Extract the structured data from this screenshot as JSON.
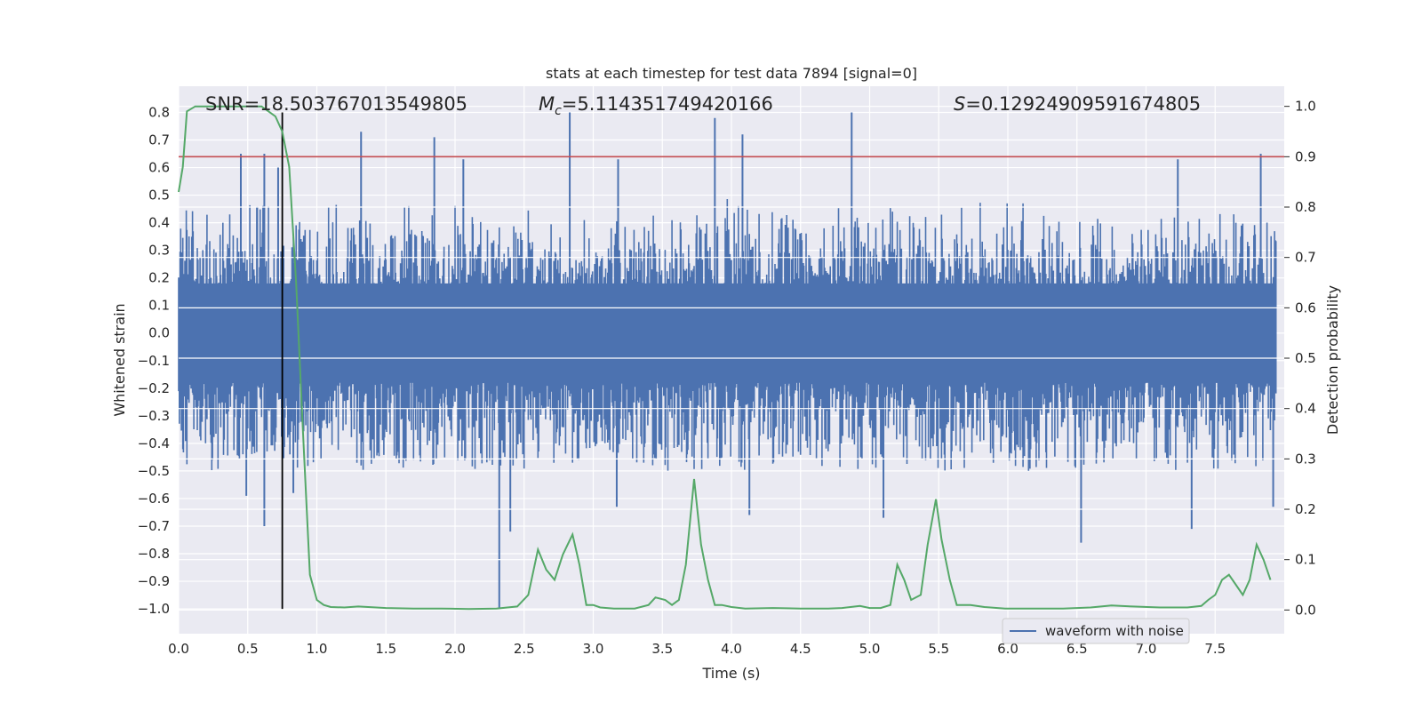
{
  "chart_data": {
    "type": "line",
    "title": "stats at each timestep for test data 7894 [signal=0]",
    "xlabel": "Time (s)",
    "ylabel": "Whitened strain",
    "y2label": "Detection probability",
    "xlim": [
      0.0,
      8.0
    ],
    "ylim": [
      -1.09,
      0.895
    ],
    "y2lim": [
      -0.047,
      1.04
    ],
    "grid": true,
    "legend_position": "lower-right",
    "x_ticks": [
      "0.0",
      "0.5",
      "1.0",
      "1.5",
      "2.0",
      "2.5",
      "3.0",
      "3.5",
      "4.0",
      "4.5",
      "5.0",
      "5.5",
      "6.0",
      "6.5",
      "7.0",
      "7.5"
    ],
    "y_ticks": [
      "0.8",
      "0.7",
      "0.6",
      "0.5",
      "0.4",
      "0.3",
      "0.2",
      "0.1",
      "0.0",
      "−0.1",
      "−0.2",
      "−0.3",
      "−0.4",
      "−0.5",
      "−0.6",
      "−0.7",
      "−0.8",
      "−0.9",
      "−1.0"
    ],
    "y2_ticks": [
      "1.0",
      "0.9",
      "0.8",
      "0.7",
      "0.6",
      "0.5",
      "0.4",
      "0.3",
      "0.2",
      "0.1",
      "0.0"
    ],
    "annotations": {
      "snr": "SNR=18.503767013549805",
      "mc_symbol": "M",
      "mc_subscript": "c",
      "mc_value": "=5.114351749420166",
      "s_symbol": "S",
      "s_value": "=0.12924909591674805"
    },
    "threshold_line": {
      "value": 0.9,
      "axis": "right",
      "color": "#c44e52"
    },
    "marker_line": {
      "x": 0.75,
      "y_range": [
        -1.0,
        0.8
      ],
      "color": "#000000"
    },
    "series": [
      {
        "name": "waveform with noise",
        "axis": "left",
        "color": "#4c72b0",
        "envelope_typical": [
          -0.4,
          0.4
        ],
        "spikes": [
          {
            "x": 0.45,
            "y": 0.65
          },
          {
            "x": 0.62,
            "y": 0.65
          },
          {
            "x": 0.72,
            "y": 0.6
          },
          {
            "x": 1.32,
            "y": 0.73
          },
          {
            "x": 1.85,
            "y": 0.71
          },
          {
            "x": 2.06,
            "y": 0.63
          },
          {
            "x": 2.83,
            "y": 0.8
          },
          {
            "x": 3.18,
            "y": 0.63
          },
          {
            "x": 3.88,
            "y": 0.78
          },
          {
            "x": 4.08,
            "y": 0.72
          },
          {
            "x": 4.87,
            "y": 0.8
          },
          {
            "x": 7.23,
            "y": 0.63
          },
          {
            "x": 7.83,
            "y": 0.65
          },
          {
            "x": 0.62,
            "y": -0.7
          },
          {
            "x": 0.49,
            "y": -0.59
          },
          {
            "x": 0.83,
            "y": -0.58
          },
          {
            "x": 2.32,
            "y": -1.0
          },
          {
            "x": 2.4,
            "y": -0.72
          },
          {
            "x": 3.17,
            "y": -0.63
          },
          {
            "x": 4.13,
            "y": -0.66
          },
          {
            "x": 5.1,
            "y": -0.67
          },
          {
            "x": 6.53,
            "y": -0.76
          },
          {
            "x": 7.33,
            "y": -0.71
          },
          {
            "x": 7.92,
            "y": -0.63
          }
        ]
      },
      {
        "name": "",
        "axis": "right",
        "color": "#55a868",
        "x": [
          0.0,
          0.03,
          0.06,
          0.12,
          0.2,
          0.3,
          0.4,
          0.5,
          0.6,
          0.65,
          0.7,
          0.75,
          0.8,
          0.85,
          0.9,
          0.95,
          1.0,
          1.05,
          1.1,
          1.2,
          1.3,
          1.5,
          1.7,
          1.9,
          2.1,
          2.3,
          2.45,
          2.53,
          2.6,
          2.66,
          2.72,
          2.78,
          2.85,
          2.9,
          2.95,
          3.0,
          3.05,
          3.15,
          3.3,
          3.4,
          3.45,
          3.52,
          3.57,
          3.62,
          3.67,
          3.73,
          3.78,
          3.83,
          3.88,
          3.93,
          4.0,
          4.1,
          4.3,
          4.5,
          4.7,
          4.8,
          4.93,
          5.0,
          5.08,
          5.15,
          5.2,
          5.25,
          5.3,
          5.37,
          5.42,
          5.48,
          5.52,
          5.58,
          5.63,
          5.73,
          5.83,
          5.98,
          6.2,
          6.4,
          6.6,
          6.75,
          6.9,
          7.1,
          7.3,
          7.4,
          7.45,
          7.5,
          7.55,
          7.6,
          7.65,
          7.7,
          7.75,
          7.8,
          7.85,
          7.9
        ],
        "y": [
          0.83,
          0.88,
          0.99,
          1.0,
          1.0,
          1.0,
          1.0,
          1.0,
          1.0,
          0.99,
          0.98,
          0.95,
          0.88,
          0.65,
          0.35,
          0.07,
          0.02,
          0.01,
          0.006,
          0.005,
          0.007,
          0.004,
          0.003,
          0.003,
          0.002,
          0.003,
          0.007,
          0.03,
          0.12,
          0.08,
          0.06,
          0.11,
          0.15,
          0.09,
          0.01,
          0.01,
          0.005,
          0.003,
          0.003,
          0.01,
          0.025,
          0.02,
          0.01,
          0.02,
          0.09,
          0.26,
          0.13,
          0.06,
          0.01,
          0.01,
          0.006,
          0.003,
          0.004,
          0.003,
          0.003,
          0.004,
          0.008,
          0.004,
          0.004,
          0.01,
          0.09,
          0.06,
          0.02,
          0.03,
          0.13,
          0.22,
          0.14,
          0.06,
          0.01,
          0.01,
          0.006,
          0.003,
          0.003,
          0.003,
          0.005,
          0.009,
          0.007,
          0.005,
          0.005,
          0.008,
          0.02,
          0.03,
          0.06,
          0.07,
          0.05,
          0.03,
          0.06,
          0.13,
          0.1,
          0.06
        ]
      }
    ]
  }
}
